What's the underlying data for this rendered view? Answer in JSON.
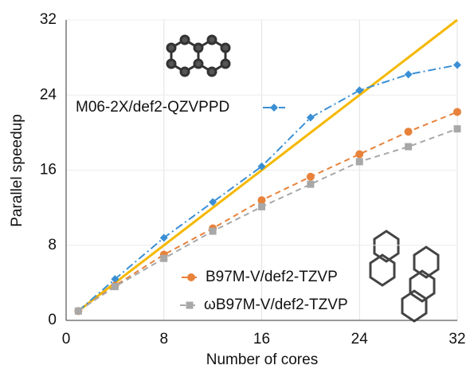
{
  "chart_data": {
    "type": "line",
    "xlabel": "Number of cores",
    "ylabel": "Parallel speedup",
    "x": [
      1,
      4,
      8,
      12,
      16,
      20,
      24,
      28,
      32
    ],
    "xlim": [
      0,
      32
    ],
    "xticks": [
      0,
      8,
      16,
      24,
      32
    ],
    "ylim": [
      0,
      32
    ],
    "yticks": [
      0,
      8,
      16,
      24,
      32
    ],
    "grid": true,
    "series": [
      {
        "color": "#f5b800",
        "style": "solid",
        "x": [
          1,
          32
        ],
        "values": [
          1,
          32
        ]
      },
      {
        "name": "M06-2X/def2-QZVPPD",
        "color": "#3a8fd4",
        "style": "dash-dot",
        "marker": "diamond",
        "values": [
          1,
          4.4,
          8.8,
          12.6,
          16.4,
          21.6,
          24.5,
          26.2,
          27.2
        ]
      },
      {
        "name": "B97M-V/def2-TZVP",
        "color": "#e8823a",
        "style": "dash",
        "marker": "circle",
        "values": [
          1,
          3.7,
          7.0,
          9.8,
          12.8,
          15.3,
          17.7,
          20.1,
          22.2
        ]
      },
      {
        "name": "ωB97M-V/def2-TZVP",
        "color": "#a8a8a8",
        "style": "dash",
        "marker": "square",
        "values": [
          1,
          3.6,
          6.6,
          9.5,
          12.1,
          14.5,
          16.9,
          18.5,
          20.4
        ]
      }
    ]
  }
}
